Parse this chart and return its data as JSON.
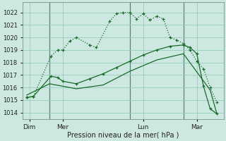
{
  "background_color": "#cce8e0",
  "grid_color": "#99ccbb",
  "line_color": "#1a6b2a",
  "title": "Pression niveau de la mer( hPa )",
  "ylim": [
    1013.5,
    1022.8
  ],
  "yticks": [
    1014,
    1015,
    1016,
    1017,
    1018,
    1019,
    1020,
    1021,
    1022
  ],
  "day_labels": [
    "Dim",
    "Mer",
    "Lun",
    "Mar"
  ],
  "day_positions": [
    0.5,
    3,
    9,
    13
  ],
  "vline_positions": [
    2.0,
    8.0,
    12.0
  ],
  "xlim": [
    0,
    15
  ],
  "series1_x": [
    0.3,
    0.8,
    2.1,
    2.6,
    3.0,
    3.5,
    4.0,
    5.0,
    5.5,
    6.5,
    7.0,
    7.5,
    8.0,
    8.5,
    9.0,
    9.5,
    10.0,
    10.5,
    11.0,
    11.5,
    12.0,
    12.5,
    13.0,
    13.5,
    14.0,
    14.5
  ],
  "series1_y": [
    1015.2,
    1015.3,
    1018.5,
    1019.0,
    1019.0,
    1019.7,
    1020.0,
    1019.4,
    1019.2,
    1021.3,
    1021.9,
    1022.0,
    1022.0,
    1021.5,
    1021.9,
    1021.4,
    1021.7,
    1021.5,
    1020.0,
    1019.8,
    1019.5,
    1019.0,
    1018.1,
    1017.5,
    1016.0,
    1014.8
  ],
  "series2_x": [
    0.3,
    0.8,
    2.1,
    2.6,
    3.0,
    4.0,
    5.0,
    6.0,
    7.0,
    8.0,
    9.0,
    10.0,
    11.0,
    12.0,
    12.5,
    13.0,
    13.5,
    14.0,
    14.5
  ],
  "series2_y": [
    1015.2,
    1015.3,
    1016.9,
    1016.8,
    1016.5,
    1016.3,
    1016.7,
    1017.1,
    1017.6,
    1018.1,
    1018.6,
    1019.0,
    1019.3,
    1019.4,
    1019.2,
    1018.7,
    1016.1,
    1014.3,
    1013.9
  ],
  "series3_x": [
    0.3,
    2.0,
    4.0,
    6.0,
    8.0,
    10.0,
    12.0,
    14.0,
    14.5
  ],
  "series3_y": [
    1015.4,
    1016.3,
    1015.9,
    1016.2,
    1017.3,
    1018.2,
    1018.7,
    1015.8,
    1013.9
  ]
}
